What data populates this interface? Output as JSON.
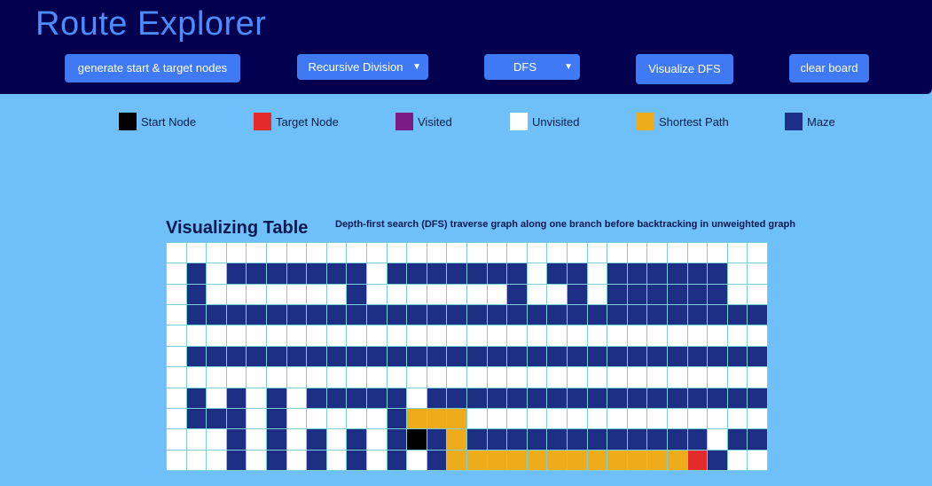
{
  "header": {
    "title": "Route Explorer",
    "generate_label": "generate start & target nodes",
    "maze_select": "Recursive Division",
    "algo_select": "DFS",
    "visualize_label": "Visualize DFS",
    "clear_label": "clear board"
  },
  "legend": {
    "items": [
      {
        "label": "Start Node",
        "color": "#000000"
      },
      {
        "label": "Target Node",
        "color": "#e32b2b"
      },
      {
        "label": "Visited",
        "color": "#7b1b86"
      },
      {
        "label": "Unvisited",
        "color": "#ffffff"
      },
      {
        "label": "Shortest Path",
        "color": "#eeab1a"
      },
      {
        "label": "Maze",
        "color": "#1c2f85"
      }
    ]
  },
  "table": {
    "title": "Visualizing Table",
    "description": "Depth-first search (DFS) traverse graph along one branch before backtracking in unweighted graph",
    "legend_key": {
      "u": "unvisited",
      "w": "maze",
      "p": "shortest path",
      "s": "start node",
      "t": "target node"
    },
    "rows": [
      "uuuuuuuuuuuuuuuuuuuuuuuuuuuuuu",
      "uwuwwwwwwwuwwwwwwwuwwuwwwwwwuu",
      "uwuuuuuuuwuuuuuuuwuuwuwwwwwwuu",
      "uwwwwwwwwwwwwwwwwwwwwwwwwwwwww",
      "uuuuuuuuuuuuuuuuuuuuuuuuuuuuuu",
      "uwwwwwwwwwwwwwwwwwwwwwwwwwwwww",
      "uuuuuuuuuuuuuuuuuuuuuuuuuuuuuu",
      "uwuwuwuwwwwwuwwwwwwwwwwwwwwwww",
      "uwwwuwuuuuuwpppuuuuuuuuuuuuuuu",
      "uuuwuwuwuwuwswpwwwwwwwwwwwwuww",
      "uuuwuwuwuwuwuwpppppppppppptwuu"
    ]
  }
}
